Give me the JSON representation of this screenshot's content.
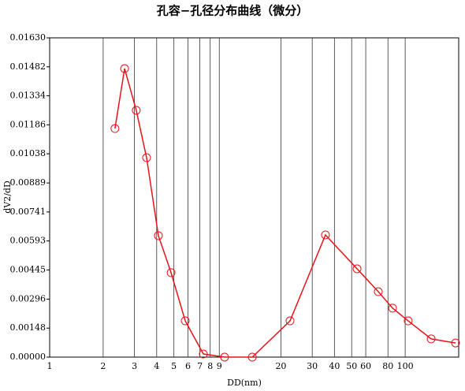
{
  "chart_data": {
    "type": "line",
    "title": "孔容−孔径分布曲线（微分）",
    "x_label": "DD(nm)",
    "y_label": "dV2/dD",
    "x_scale": "log",
    "grid": true,
    "xlim": [
      1,
      200
    ],
    "ylim": [
      0,
      0.0163
    ],
    "xticks": [
      1,
      2,
      3,
      4,
      5,
      6,
      7,
      8,
      9,
      20,
      30,
      40,
      50,
      60,
      80,
      100
    ],
    "yticks": [
      {
        "value": 0,
        "label": "0.00000"
      },
      0.00148,
      0.00296,
      0.00445,
      0.00593,
      0.00741,
      0.00889,
      0.01038,
      0.01186,
      0.01334,
      0.01482,
      {
        "value": 0.0163,
        "label": "0.01630"
      }
    ],
    "series": [
      {
        "color": "#e8141b",
        "x": [
          2.33,
          2.64,
          3.07,
          3.51,
          4.09,
          4.82,
          5.79,
          7.32,
          9.64,
          13.8,
          22.5,
          35.6,
          53.6,
          70.6,
          84.9,
          104,
          140,
          192
        ],
        "values": [
          0.01167,
          0.01473,
          0.0126,
          0.01018,
          0.0062,
          0.00431,
          0.00185,
          0.00016,
          0,
          0,
          0.00185,
          0.00624,
          0.00451,
          0.00334,
          0.0025,
          0.00185,
          0.00093,
          0.00072
        ]
      }
    ]
  }
}
